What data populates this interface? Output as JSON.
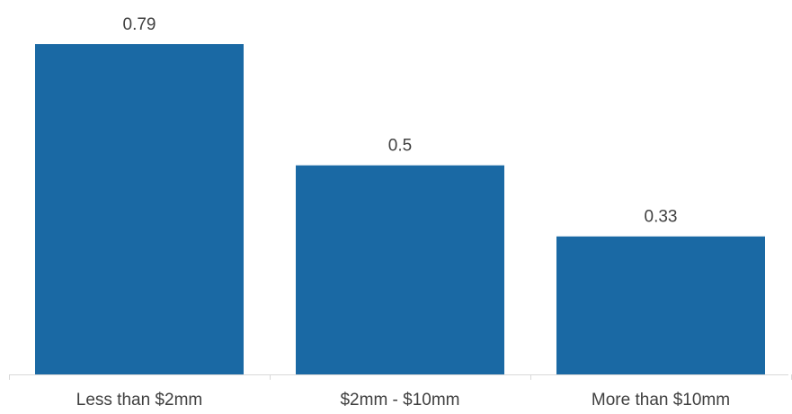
{
  "chart_data": {
    "type": "bar",
    "categories": [
      "Less than $2mm",
      "$2mm - $10mm",
      "More than $10mm"
    ],
    "values": [
      0.79,
      0.5,
      0.33
    ],
    "data_labels": [
      "0.79",
      "0.5",
      "0.33"
    ],
    "ylim": [
      0,
      0.79
    ],
    "grid": false,
    "legend": "none",
    "bar_color": "#1a69a4",
    "axis_color": "#d9d9d9",
    "text_color": "#404040"
  }
}
